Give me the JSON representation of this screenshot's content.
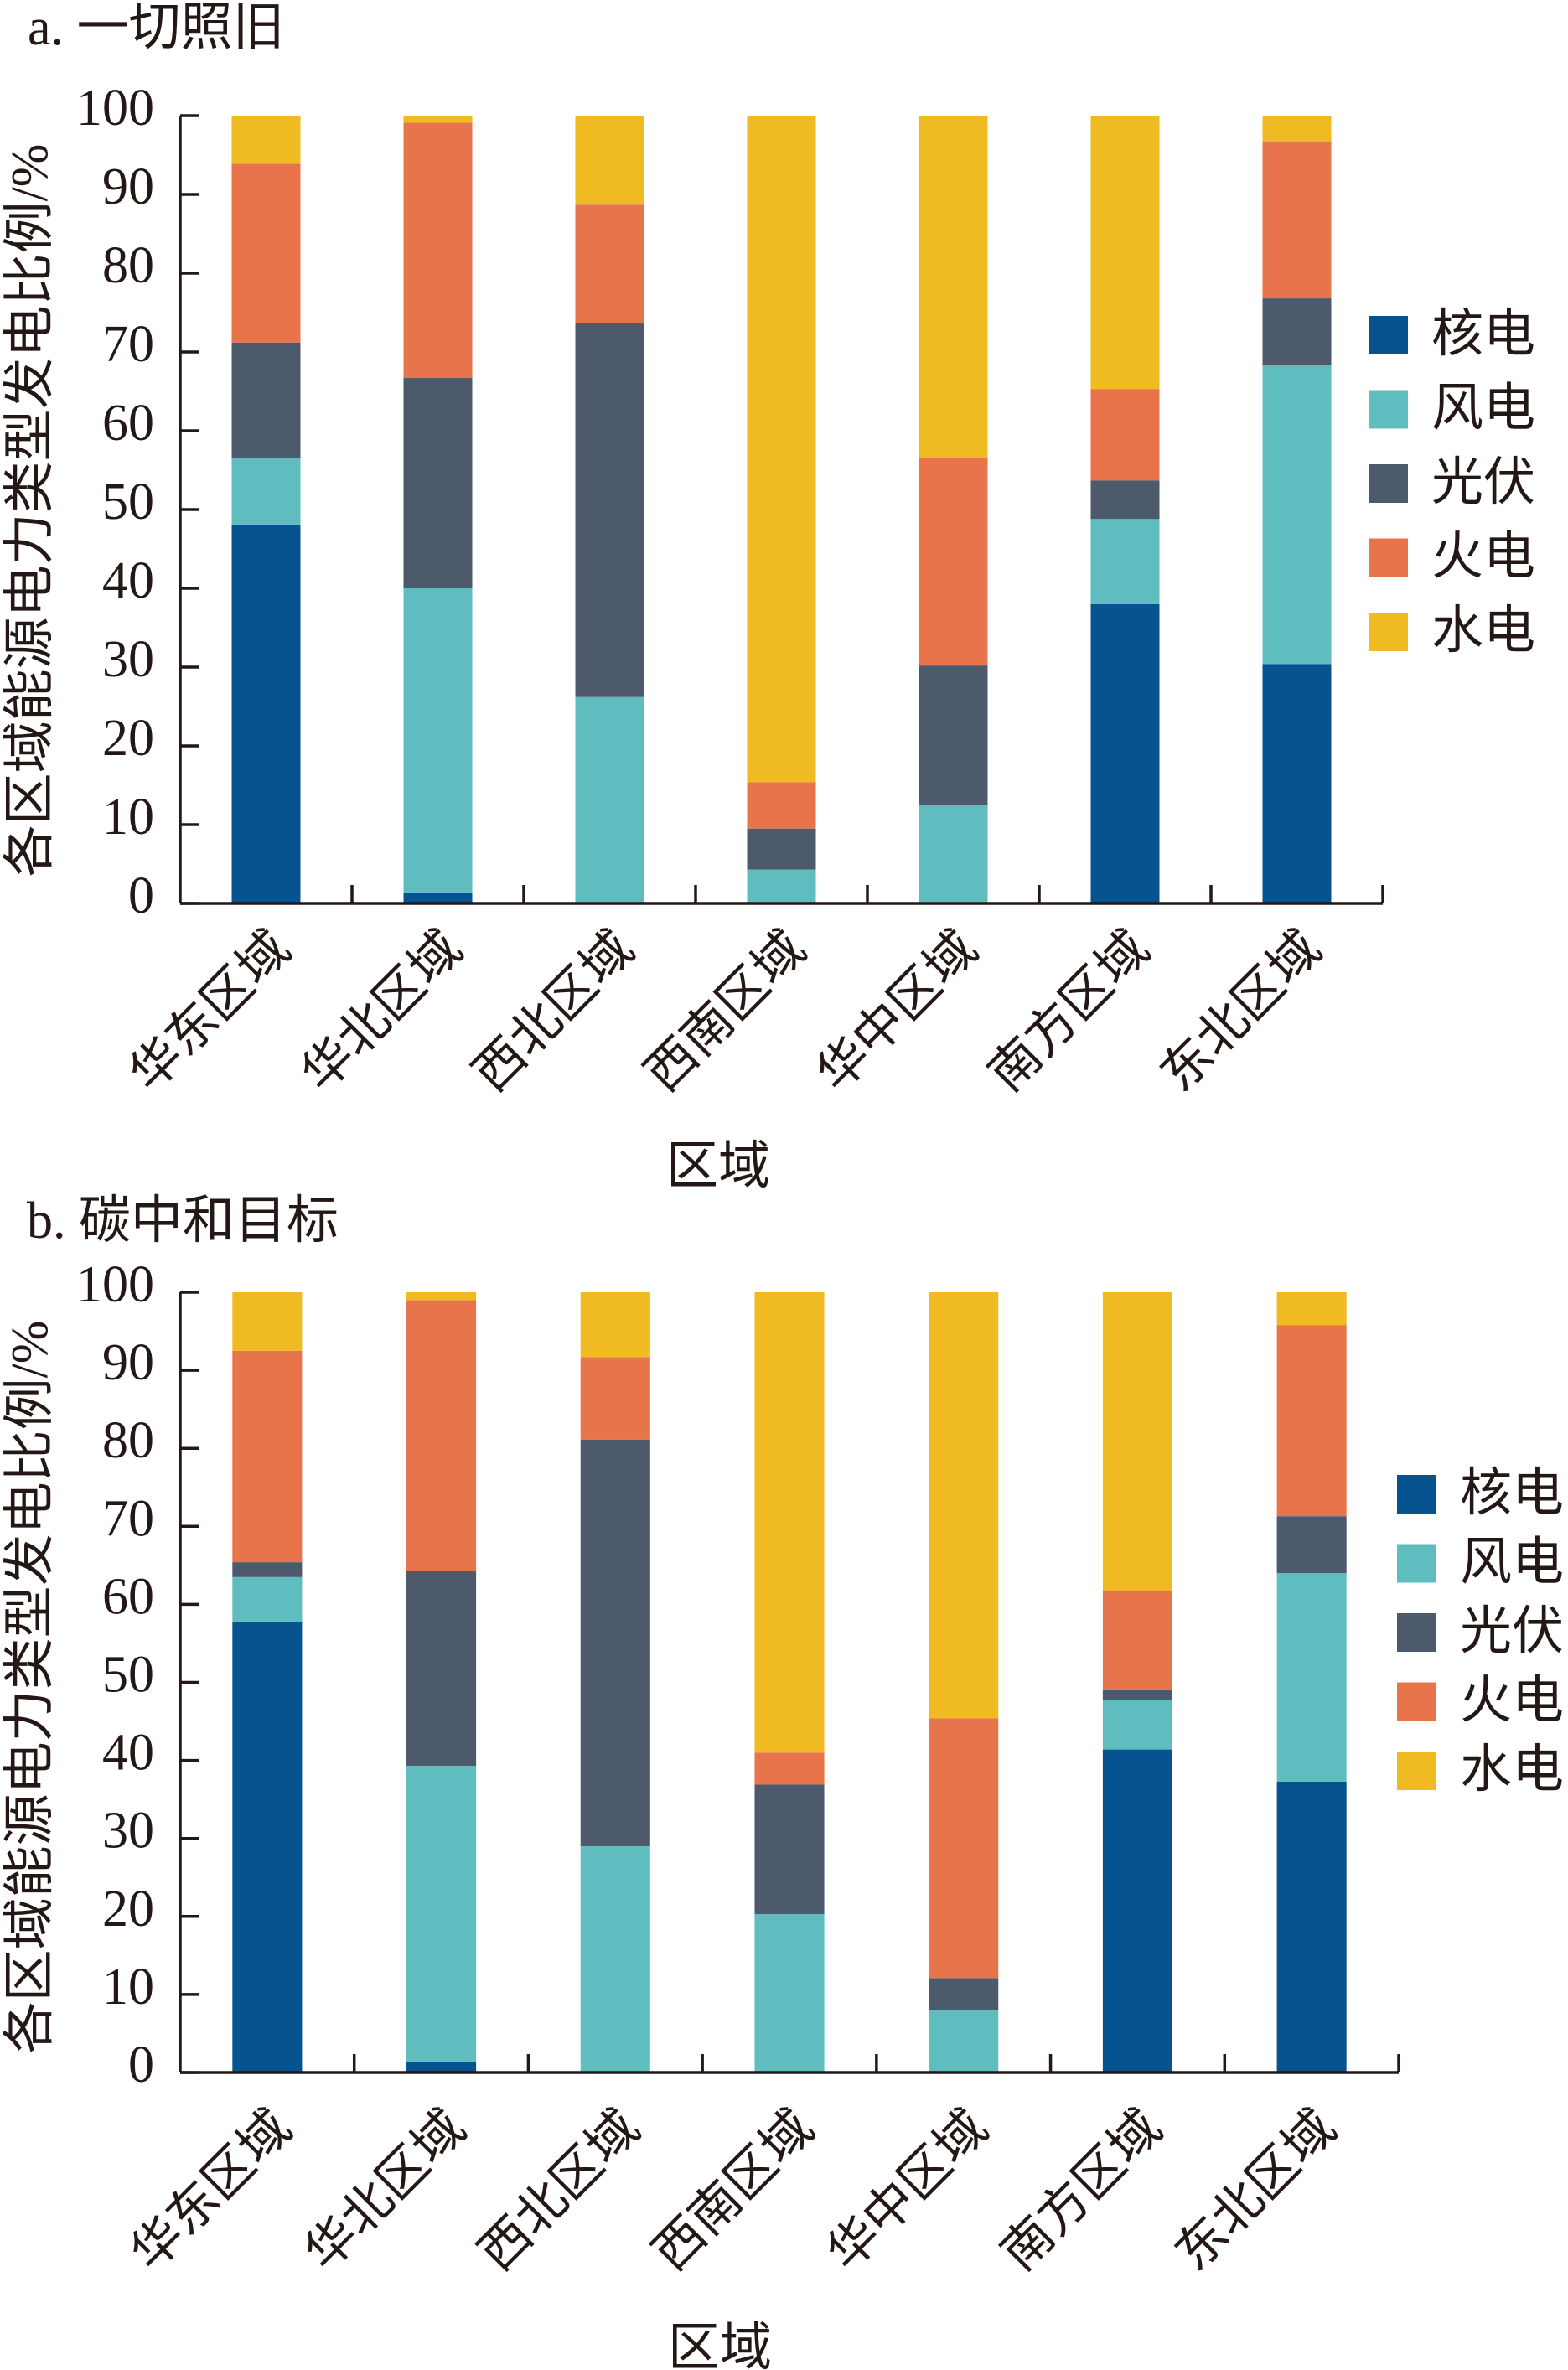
{
  "figure": {
    "background": "#FFFFFF",
    "text_color": "#231815"
  },
  "chart_data": [
    {
      "panel": "a",
      "type": "bar",
      "stacked": true,
      "title": "a. 一切照旧",
      "xlabel": "区域",
      "ylabel": "各区域能源电力类型发电比例/%",
      "categories": [
        "华东区域",
        "华北区域",
        "西北区域",
        "西南区域",
        "华中区域",
        "南方区域",
        "东北区域"
      ],
      "ylim": [
        0,
        100
      ],
      "yticks": [
        0,
        10,
        20,
        30,
        40,
        50,
        60,
        70,
        80,
        90,
        100
      ],
      "grid": false,
      "legend": "right",
      "series": [
        {
          "name": "核电",
          "color": "#07538F",
          "values": [
            48.1,
            1.4,
            0,
            0,
            0,
            38.0,
            30.4
          ]
        },
        {
          "name": "风电",
          "color": "#60BDBF",
          "values": [
            8.4,
            38.6,
            26.2,
            4.3,
            12.5,
            10.8,
            37.9
          ]
        },
        {
          "name": "光伏",
          "color": "#4D5A6B",
          "values": [
            14.7,
            26.7,
            47.5,
            5.2,
            17.7,
            4.9,
            8.5
          ]
        },
        {
          "name": "火电",
          "color": "#E8744C",
          "values": [
            22.7,
            32.4,
            15.0,
            5.9,
            26.4,
            11.6,
            19.9
          ]
        },
        {
          "name": "水电",
          "color": "#EFBA22",
          "values": [
            6.1,
            0.9,
            11.3,
            84.6,
            43.4,
            34.7,
            3.3
          ]
        }
      ]
    },
    {
      "panel": "b",
      "type": "bar",
      "stacked": true,
      "title": "b. 碳中和目标",
      "xlabel": "区域",
      "ylabel": "各区域能源电力类型发电比例/%",
      "categories": [
        "华东区域",
        "华北区域",
        "西北区域",
        "西南区域",
        "华中区域",
        "南方区域",
        "东北区域"
      ],
      "ylim": [
        0,
        100
      ],
      "yticks": [
        0,
        10,
        20,
        30,
        40,
        50,
        60,
        70,
        80,
        90,
        100
      ],
      "grid": false,
      "legend": "right",
      "series": [
        {
          "name": "核电",
          "color": "#07538F",
          "values": [
            57.7,
            1.4,
            0,
            0,
            0,
            41.4,
            37.3
          ]
        },
        {
          "name": "风电",
          "color": "#60BDBF",
          "values": [
            5.8,
            37.9,
            29.0,
            20.3,
            8.0,
            6.3,
            26.7
          ]
        },
        {
          "name": "光伏",
          "color": "#4D5A6B",
          "values": [
            1.9,
            25.0,
            52.1,
            16.6,
            4.1,
            1.4,
            7.3
          ]
        },
        {
          "name": "火电",
          "color": "#E8744C",
          "values": [
            27.1,
            34.7,
            10.6,
            4.1,
            33.3,
            12.7,
            24.5
          ]
        },
        {
          "name": "水电",
          "color": "#EFBA22",
          "values": [
            7.5,
            1.0,
            8.3,
            59.0,
            54.6,
            38.2,
            4.2
          ]
        }
      ]
    }
  ]
}
